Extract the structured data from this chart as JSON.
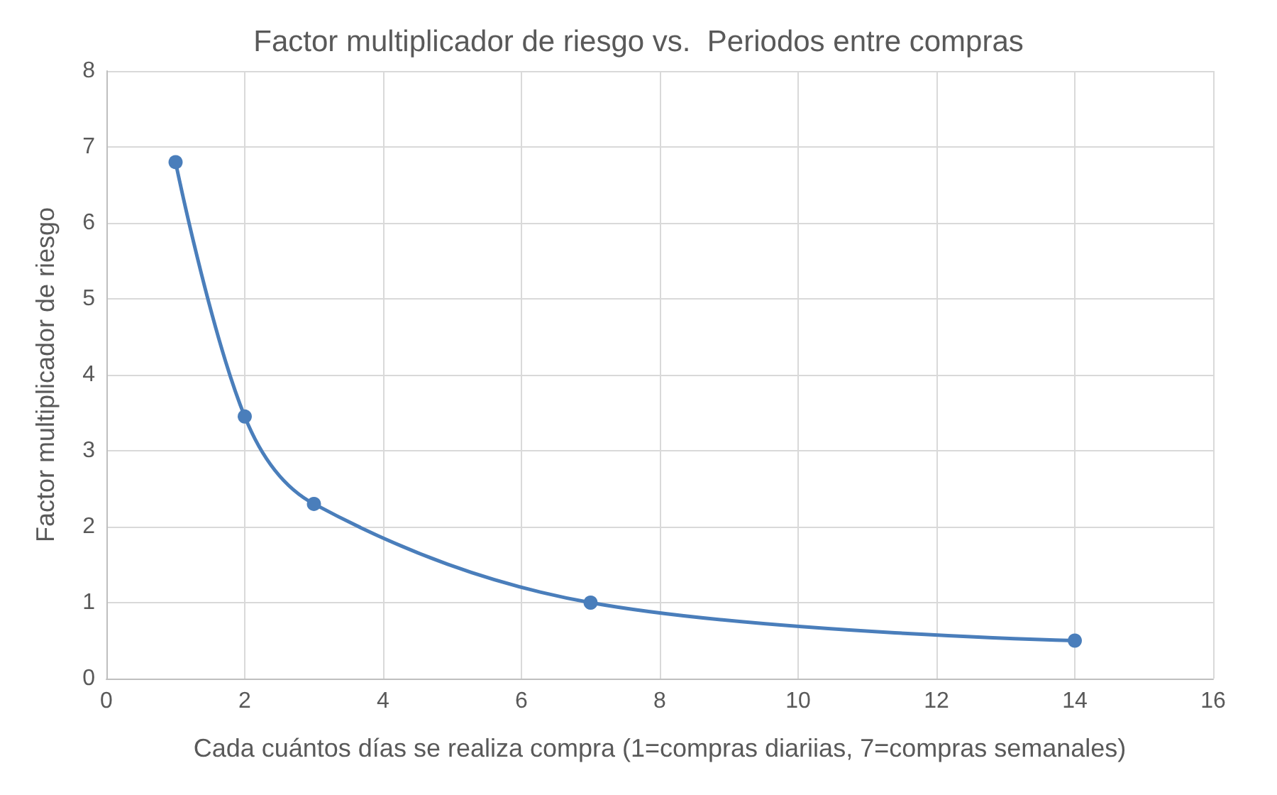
{
  "chart_data": {
    "type": "line",
    "title": "Factor multiplicador de riesgo vs.  Periodos entre compras",
    "xlabel": "Cada cuántos días se realiza compra (1=compras diariias, 7=compras semanales)",
    "ylabel": "Factor multiplicador de riesgo",
    "x": [
      1,
      2,
      3,
      7,
      14
    ],
    "series": [
      {
        "color": "#4a7ebb",
        "values": [
          6.8,
          3.45,
          2.3,
          1.0,
          0.5
        ]
      }
    ],
    "xlim": [
      0,
      16
    ],
    "xticks": [
      0,
      2,
      4,
      6,
      8,
      10,
      12,
      14,
      16
    ],
    "ylim": [
      0,
      8
    ],
    "yticks": [
      0,
      1,
      2,
      3,
      4,
      5,
      6,
      7,
      8
    ],
    "grid": true,
    "marker": "circle",
    "line_style": "solid"
  }
}
